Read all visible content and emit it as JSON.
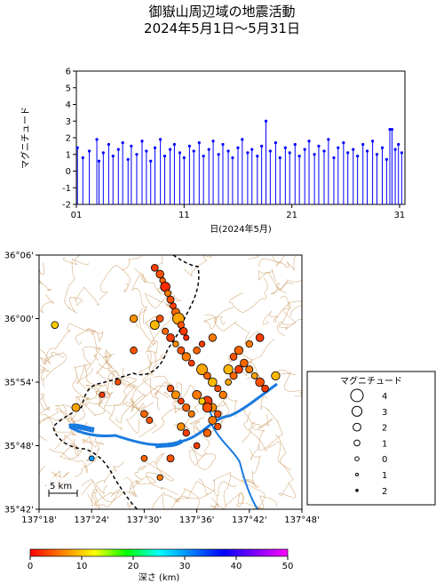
{
  "title_line1": "御嶽山周辺域の地震活動",
  "title_line2": "2024年5月1日〜5月31日",
  "chart_data": [
    {
      "type": "stem",
      "ylabel": "マグニチュード",
      "xlabel": "日(2024年5月)",
      "xlim": [
        1,
        31.5
      ],
      "ylim": [
        -2,
        6
      ],
      "yticks": [
        "6",
        "5",
        "4",
        "3",
        "2",
        "1",
        "0",
        "-1",
        "-2"
      ],
      "xticks": [
        "01",
        "11",
        "21",
        "31"
      ],
      "grid": false,
      "series_color": "#0000ff",
      "series": [
        {
          "x": [
            1.1,
            1.6,
            2.2,
            2.9,
            3.1,
            3.5,
            4.0,
            4.4,
            4.9,
            5.3,
            5.8,
            6.1,
            6.6,
            7.1,
            7.5,
            7.9,
            8.3,
            8.8,
            9.2,
            9.7,
            10.1,
            10.6,
            11.0,
            11.5,
            11.9,
            12.4,
            12.8,
            13.3,
            13.7,
            14.2,
            14.6,
            15.1,
            15.5,
            16.0,
            16.4,
            16.9,
            17.3,
            17.8,
            18.2,
            18.6,
            19.0,
            19.5,
            19.9,
            20.4,
            20.8,
            21.3,
            21.7,
            22.2,
            22.6,
            23.1,
            23.5,
            24.0,
            24.4,
            24.9,
            25.3,
            25.8,
            26.2,
            26.7,
            27.1,
            27.6,
            28.0,
            28.5,
            28.9,
            29.4,
            29.8,
            30.1,
            30.3,
            30.6,
            30.9,
            31.2
          ],
          "values": [
            1.4,
            0.8,
            1.2,
            1.9,
            0.6,
            1.1,
            1.6,
            0.9,
            1.3,
            1.7,
            0.7,
            1.5,
            1.0,
            1.8,
            1.2,
            0.6,
            1.4,
            1.9,
            0.9,
            1.3,
            1.6,
            1.1,
            0.8,
            1.5,
            1.2,
            1.7,
            0.9,
            1.3,
            1.8,
            1.0,
            1.6,
            1.2,
            0.8,
            1.4,
            1.9,
            1.1,
            1.3,
            0.9,
            1.5,
            3.0,
            1.2,
            1.7,
            0.8,
            1.4,
            1.1,
            1.6,
            0.9,
            1.3,
            1.8,
            1.0,
            1.5,
            1.2,
            1.9,
            0.8,
            1.4,
            1.7,
            1.1,
            1.3,
            0.9,
            1.6,
            1.2,
            1.8,
            1.0,
            1.4,
            0.7,
            2.5,
            2.5,
            1.3,
            1.6,
            1.1
          ]
        }
      ]
    },
    {
      "type": "map-scatter",
      "xticks": [
        "137°18'",
        "137°24'",
        "137°30'",
        "137°36'",
        "137°42'",
        "137°48'"
      ],
      "yticks": [
        "36°06'",
        "36°00'",
        "35°54'",
        "35°48'",
        "35°42'"
      ],
      "xlim": [
        137.3,
        137.8
      ],
      "ylim": [
        35.7,
        36.1
      ],
      "scale_label": "5 km",
      "legend_title": "マグニチュード",
      "legend_items": [
        "4",
        "3",
        "2",
        "1",
        "0",
        "1",
        "2"
      ],
      "colorbar_label": "深さ (km)",
      "colorbar_ticks": [
        "0",
        "10",
        "20",
        "30",
        "40",
        "50"
      ],
      "colorbar_colors": [
        "#ff0000",
        "#ff8000",
        "#ffff00",
        "#00ff00",
        "#00ffff",
        "#0080ff",
        "#0000ff",
        "#8000ff",
        "#ff00ff"
      ],
      "events": {
        "lon": [
          137.52,
          137.53,
          137.535,
          137.54,
          137.545,
          137.55,
          137.555,
          137.56,
          137.565,
          137.57,
          137.575,
          137.58,
          137.52,
          137.53,
          137.54,
          137.55,
          137.56,
          137.57,
          137.58,
          137.59,
          137.61,
          137.62,
          137.63,
          137.64,
          137.65,
          137.62,
          137.63,
          137.64,
          137.66,
          137.67,
          137.68,
          137.6,
          137.61,
          137.62,
          137.6,
          137.61,
          137.63,
          137.55,
          137.56,
          137.57,
          137.58,
          137.59,
          137.45,
          137.42,
          137.5,
          137.51,
          137.57,
          137.58,
          137.69,
          137.7,
          137.71,
          137.72,
          137.73,
          137.63,
          137.64,
          137.62,
          137.6,
          137.66,
          137.67,
          137.68,
          137.7,
          137.72,
          137.33,
          137.37,
          137.48,
          137.5,
          137.55,
          137.53,
          137.75,
          137.4,
          137.48
        ],
        "lat": [
          36.08,
          36.07,
          36.06,
          36.05,
          36.04,
          36.03,
          36.02,
          36.01,
          36.0,
          35.99,
          35.98,
          35.97,
          35.99,
          36.0,
          35.98,
          35.97,
          35.96,
          35.95,
          35.94,
          35.93,
          35.92,
          35.91,
          35.9,
          35.89,
          35.88,
          35.87,
          35.86,
          35.85,
          35.9,
          35.91,
          35.92,
          35.88,
          35.87,
          35.86,
          35.95,
          35.96,
          35.97,
          35.89,
          35.88,
          35.87,
          35.86,
          35.85,
          35.9,
          35.88,
          35.85,
          35.84,
          35.83,
          35.82,
          35.93,
          35.92,
          35.91,
          35.9,
          35.89,
          35.84,
          35.83,
          35.82,
          35.8,
          35.92,
          35.94,
          35.95,
          35.96,
          35.97,
          35.99,
          35.86,
          36.0,
          35.78,
          35.78,
          35.75,
          35.91,
          35.78,
          35.95
        ],
        "mag": [
          1.2,
          1.5,
          0.8,
          2.1,
          1.0,
          1.3,
          0.9,
          1.6,
          2.8,
          1.1,
          1.4,
          0.7,
          1.9,
          1.2,
          1.0,
          1.5,
          0.8,
          1.3,
          1.7,
          0.9,
          2.5,
          1.2,
          1.8,
          1.0,
          1.4,
          2.2,
          1.6,
          1.1,
          0.9,
          1.3,
          1.5,
          1.8,
          1.0,
          2.0,
          1.2,
          0.8,
          1.4,
          1.1,
          1.6,
          0.9,
          1.3,
          1.0,
          0.8,
          0.7,
          1.2,
          1.0,
          1.4,
          1.1,
          1.5,
          1.3,
          0.9,
          1.8,
          1.2,
          1.6,
          1.0,
          1.4,
          0.9,
          2.0,
          1.2,
          1.7,
          1.1,
          1.5,
          1.2,
          1.6,
          1.4,
          0.9,
          1.3,
          0.8,
          1.7,
          0.6,
          1.2
        ],
        "depth": [
          3,
          4,
          5,
          2,
          6,
          4,
          3,
          5,
          8,
          4,
          3,
          2,
          9,
          4,
          5,
          3,
          7,
          4,
          6,
          3,
          8,
          5,
          9,
          4,
          6,
          3,
          7,
          4,
          8,
          5,
          3,
          6,
          10,
          4,
          5,
          3,
          6,
          4,
          7,
          3,
          5,
          6,
          4,
          3,
          5,
          4,
          7,
          3,
          5,
          6,
          8,
          4,
          3,
          6,
          4,
          5,
          3,
          9,
          4,
          5,
          6,
          3,
          10,
          8,
          7,
          5,
          4,
          6,
          9,
          30,
          4
        ]
      }
    }
  ]
}
